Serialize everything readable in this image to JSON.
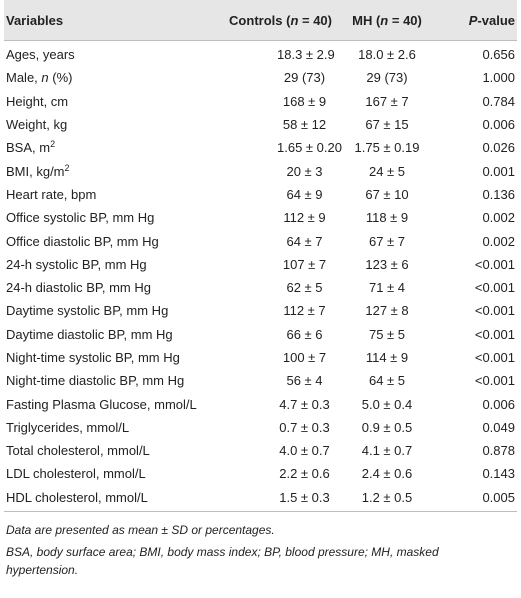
{
  "headers": {
    "variables": "Variables",
    "controls": "Controls (n = 40)",
    "mh": "MH (n = 40)",
    "pvalue": "P-value"
  },
  "rows": [
    {
      "label": "Ages, years",
      "controls": "18.3 ± 2.9",
      "mh": "18.0 ± 2.6",
      "p": "0.656"
    },
    {
      "label": "Male, n (%)",
      "controls": "29 (73)",
      "mh": "29 (73)",
      "p": "1.000"
    },
    {
      "label": "Height, cm",
      "controls": "168 ± 9",
      "mh": "167 ± 7",
      "p": "0.784"
    },
    {
      "label": "Weight, kg",
      "controls": "58 ± 12",
      "mh": "67 ± 15",
      "p": "0.006"
    },
    {
      "label": "BSA, m2",
      "controls": "1.65 ± 0.20",
      "mh": "1.75 ± 0.19",
      "p": "0.026"
    },
    {
      "label": "BMI, kg/m2",
      "controls": "20 ± 3",
      "mh": "24 ± 5",
      "p": "0.001"
    },
    {
      "label": "Heart rate, bpm",
      "controls": "64 ± 9",
      "mh": "67 ± 10",
      "p": "0.136"
    },
    {
      "label": "Office systolic BP, mm Hg",
      "controls": "112 ± 9",
      "mh": "118 ± 9",
      "p": "0.002"
    },
    {
      "label": "Office diastolic BP, mm Hg",
      "controls": "64 ± 7",
      "mh": "67 ± 7",
      "p": "0.002"
    },
    {
      "label": "24-h systolic BP, mm Hg",
      "controls": "107 ± 7",
      "mh": "123 ± 6",
      "p": "<0.001"
    },
    {
      "label": "24-h diastolic BP, mm Hg",
      "controls": "62 ± 5",
      "mh": "71 ± 4",
      "p": "<0.001"
    },
    {
      "label": "Daytime systolic BP, mm Hg",
      "controls": "112 ± 7",
      "mh": "127 ± 8",
      "p": "<0.001"
    },
    {
      "label": "Daytime diastolic BP, mm Hg",
      "controls": "66 ± 6",
      "mh": "75 ± 5",
      "p": "<0.001"
    },
    {
      "label": "Night-time systolic BP, mm Hg",
      "controls": "100 ± 7",
      "mh": "114 ± 9",
      "p": "<0.001"
    },
    {
      "label": "Night-time diastolic BP, mm Hg",
      "controls": "56 ± 4",
      "mh": "64 ± 5",
      "p": "<0.001"
    },
    {
      "label": "Fasting Plasma Glucose, mmol/L",
      "controls": "4.7 ± 0.3",
      "mh": "5.0 ± 0.4",
      "p": "0.006"
    },
    {
      "label": "Triglycerides, mmol/L",
      "controls": "0.7 ± 0.3",
      "mh": "0.9 ± 0.5",
      "p": "0.049"
    },
    {
      "label": "Total cholesterol, mmol/L",
      "controls": "4.0 ± 0.7",
      "mh": "4.1 ± 0.7",
      "p": "0.878"
    },
    {
      "label": "LDL cholesterol, mmol/L",
      "controls": "2.2 ± 0.6",
      "mh": "2.4 ± 0.6",
      "p": "0.143"
    },
    {
      "label": "HDL cholesterol, mmol/L",
      "controls": "1.5 ± 0.3",
      "mh": "1.2 ± 0.5",
      "p": "0.005"
    }
  ],
  "notes": [
    "Data are presented as mean ± SD or percentages.",
    "BSA, body surface area; BMI, body mass index; BP, blood pressure; MH, masked hypertension."
  ]
}
